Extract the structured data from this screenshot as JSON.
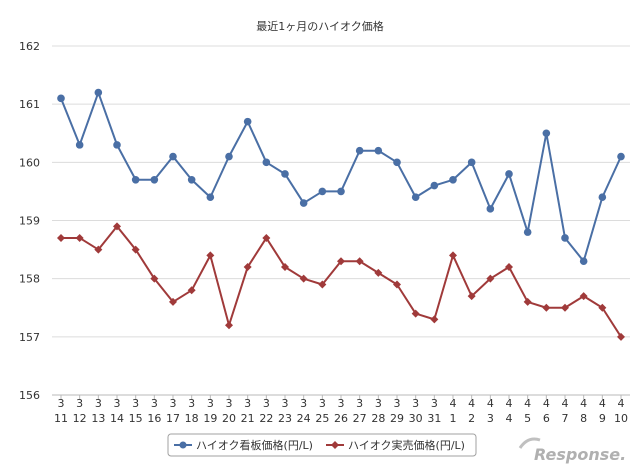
{
  "chart_data": {
    "type": "line",
    "title": "最近1ヶ月のハイオク価格",
    "ylim": [
      156,
      162
    ],
    "yticks": [
      156,
      157,
      158,
      159,
      160,
      161,
      162
    ],
    "grid": true,
    "legend_placement": "bottom-center",
    "categories": [
      {
        "month": "3",
        "day": "11"
      },
      {
        "month": "3",
        "day": "12"
      },
      {
        "month": "3",
        "day": "13"
      },
      {
        "month": "3",
        "day": "14"
      },
      {
        "month": "3",
        "day": "15"
      },
      {
        "month": "3",
        "day": "16"
      },
      {
        "month": "3",
        "day": "17"
      },
      {
        "month": "3",
        "day": "18"
      },
      {
        "month": "3",
        "day": "19"
      },
      {
        "month": "3",
        "day": "20"
      },
      {
        "month": "3",
        "day": "21"
      },
      {
        "month": "3",
        "day": "22"
      },
      {
        "month": "3",
        "day": "23"
      },
      {
        "month": "3",
        "day": "24"
      },
      {
        "month": "3",
        "day": "25"
      },
      {
        "month": "3",
        "day": "26"
      },
      {
        "month": "3",
        "day": "27"
      },
      {
        "month": "3",
        "day": "28"
      },
      {
        "month": "3",
        "day": "29"
      },
      {
        "month": "3",
        "day": "30"
      },
      {
        "month": "3",
        "day": "31"
      },
      {
        "month": "4",
        "day": "1"
      },
      {
        "month": "4",
        "day": "2"
      },
      {
        "month": "4",
        "day": "3"
      },
      {
        "month": "4",
        "day": "4"
      },
      {
        "month": "4",
        "day": "5"
      },
      {
        "month": "4",
        "day": "6"
      },
      {
        "month": "4",
        "day": "7"
      },
      {
        "month": "4",
        "day": "8"
      },
      {
        "month": "4",
        "day": "9"
      },
      {
        "month": "4",
        "day": "10"
      }
    ],
    "series": [
      {
        "name": "ハイオク看板価格(円/L)",
        "color": "#4a6fa5",
        "marker": "circle",
        "values": [
          161.1,
          160.3,
          161.2,
          160.3,
          159.7,
          159.7,
          160.1,
          159.7,
          159.4,
          160.1,
          160.7,
          160.0,
          159.8,
          159.3,
          159.5,
          159.5,
          160.2,
          160.2,
          160.0,
          159.4,
          159.6,
          159.7,
          160.0,
          159.2,
          159.8,
          158.8,
          160.5,
          158.7,
          158.3,
          159.4,
          160.1
        ]
      },
      {
        "name": "ハイオク実売価格(円/L)",
        "color": "#a03a3a",
        "marker": "diamond",
        "values": [
          158.7,
          158.7,
          158.5,
          158.9,
          158.5,
          158.0,
          157.6,
          157.8,
          158.4,
          157.2,
          158.2,
          158.7,
          158.2,
          158.0,
          157.9,
          158.3,
          158.3,
          158.1,
          157.9,
          157.4,
          157.3,
          158.4,
          157.7,
          158.0,
          158.2,
          157.6,
          157.5,
          157.5,
          157.7,
          157.5,
          157.0
        ]
      }
    ]
  },
  "watermark": "Response."
}
